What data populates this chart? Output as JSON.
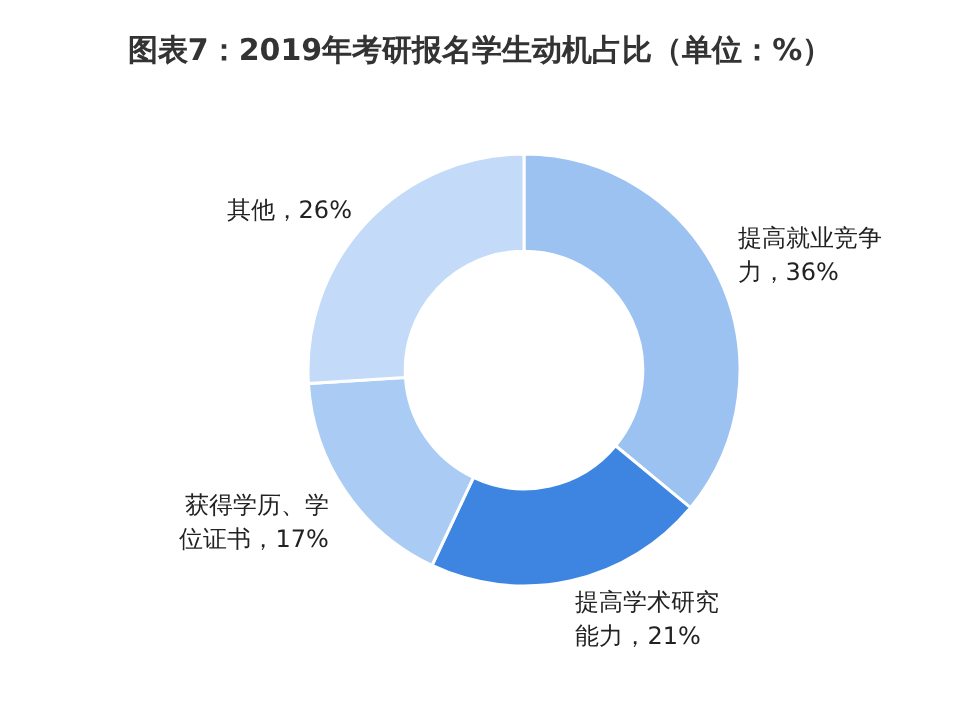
{
  "chart_data": {
    "type": "donut",
    "title": "图表7：2019年考研报名学生动机占比（单位：%）",
    "categories": [
      "提高就业竞争力，36%",
      "提高学术研究能力，21%",
      "获得学历、学位证书，17%",
      "其他，26%"
    ],
    "values": [
      36,
      21,
      17,
      26
    ],
    "colors": [
      "#9cc2f2",
      "#3d85e0",
      "#a9cbf4",
      "#c3dbf8"
    ]
  }
}
